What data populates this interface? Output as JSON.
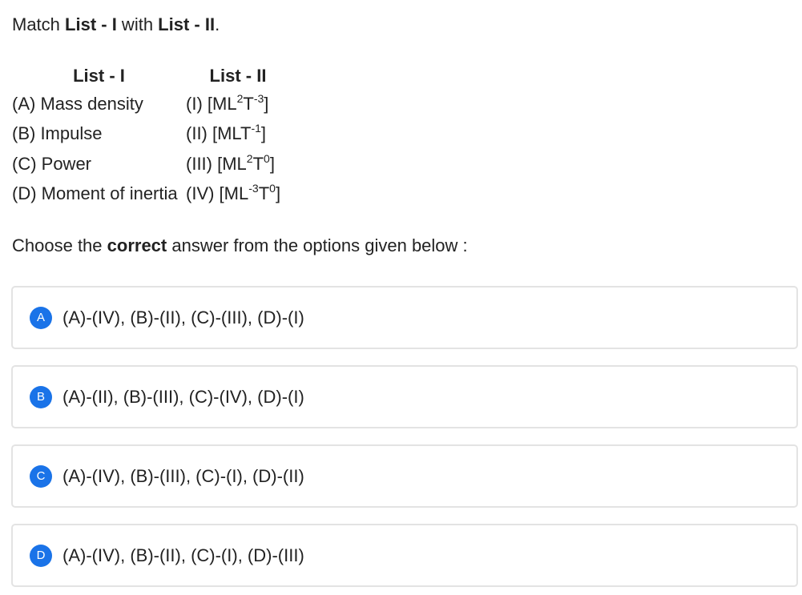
{
  "question": {
    "prefix": "Match ",
    "list1": "List - I",
    "middle": " with ",
    "list2": "List - II",
    "suffix": "."
  },
  "table": {
    "header_left": "List - I",
    "header_right": "List - II",
    "rows": [
      {
        "left": "(A) Mass density",
        "right": [
          {
            "t": "(I) [ML"
          },
          {
            "sup": "2"
          },
          {
            "t": "T"
          },
          {
            "sup": "-3"
          },
          {
            "t": "]"
          }
        ]
      },
      {
        "left": "(B) Impulse",
        "right": [
          {
            "t": "(II) [MLT"
          },
          {
            "sup": "-1"
          },
          {
            "t": "]"
          }
        ]
      },
      {
        "left": "(C) Power",
        "right": [
          {
            "t": "(III) [ML"
          },
          {
            "sup": "2"
          },
          {
            "t": "T"
          },
          {
            "sup": "0"
          },
          {
            "t": "]"
          }
        ]
      },
      {
        "left": "(D) Moment of inertia",
        "right": [
          {
            "t": "(IV) [ML"
          },
          {
            "sup": "-3"
          },
          {
            "t": "T"
          },
          {
            "sup": "0"
          },
          {
            "t": "]"
          }
        ]
      }
    ]
  },
  "prompt": {
    "before": "Choose the ",
    "bold": "correct",
    "after": " answer from the options given below :"
  },
  "options": [
    {
      "letter": "A",
      "text": "(A)-(IV), (B)-(II), (C)-(III), (D)-(I)"
    },
    {
      "letter": "B",
      "text": "(A)-(II), (B)-(III), (C)-(IV), (D)-(I)"
    },
    {
      "letter": "C",
      "text": "(A)-(IV), (B)-(III), (C)-(I), (D)-(II)"
    },
    {
      "letter": "D",
      "text": "(A)-(IV), (B)-(II), (C)-(I), (D)-(III)"
    }
  ],
  "colors": {
    "badge": "#1a73e8",
    "option_border": "#e3e3e3",
    "text": "#222222"
  }
}
